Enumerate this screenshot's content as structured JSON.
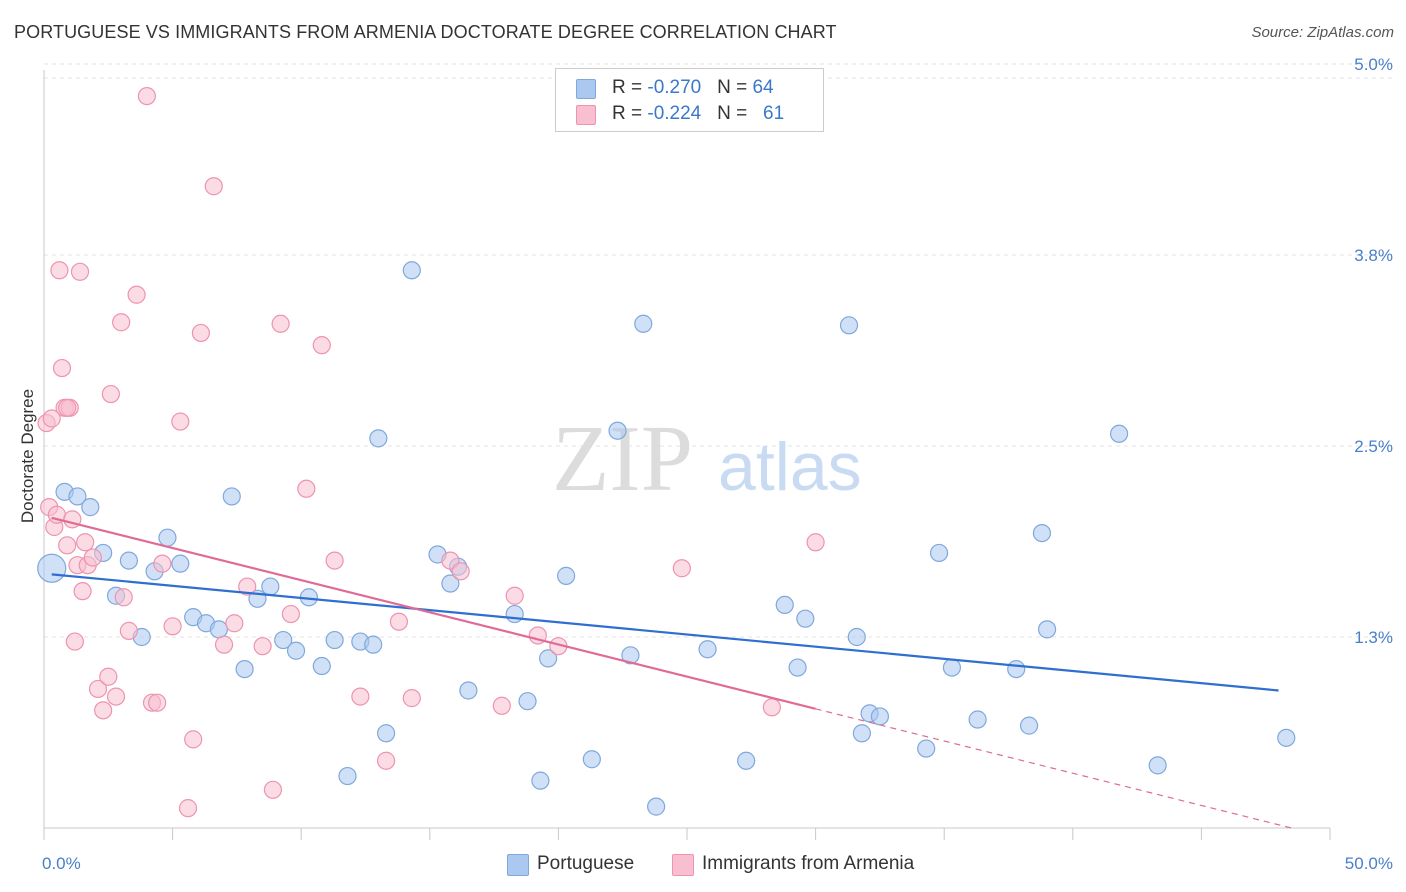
{
  "title": "PORTUGUESE VS IMMIGRANTS FROM ARMENIA DOCTORATE DEGREE CORRELATION CHART",
  "source": "Source: ZipAtlas.com",
  "watermark": {
    "zip": "ZIP",
    "atlas": "atlas"
  },
  "legend": {
    "rows": [
      {
        "r_label": "R = ",
        "r_value": "-0.270",
        "n_label": "N = ",
        "n_value": "64",
        "color": "#aac8f0"
      },
      {
        "r_label": "R = ",
        "r_value": "-0.224",
        "n_label": "N = ",
        "n_value": "61",
        "color": "#f7bfd0"
      }
    ]
  },
  "bottom_legend": [
    {
      "label": "Portuguese",
      "color": "#aac8f0"
    },
    {
      "label": "Immigrants from Armenia",
      "color": "#f7bfd0"
    }
  ],
  "chart_data": {
    "type": "scatter",
    "title": "PORTUGUESE VS IMMIGRANTS FROM ARMENIA DOCTORATE DEGREE CORRELATION CHART",
    "xlabel": "",
    "ylabel": "Doctorate Degree",
    "xlim": [
      0,
      50
    ],
    "ylim": [
      0,
      5.2
    ],
    "x_tick_labels": [
      {
        "value": 0,
        "label": "0.0%"
      },
      {
        "value": 50,
        "label": "50.0%"
      }
    ],
    "y_tick_labels": [
      {
        "value": 1.25,
        "label": "1.3%"
      },
      {
        "value": 2.5,
        "label": "2.5%"
      },
      {
        "value": 3.75,
        "label": "3.8%"
      },
      {
        "value": 5.0,
        "label": "5.0%"
      }
    ],
    "grid": true,
    "series": [
      {
        "name": "Portuguese",
        "color": "#aac8f0",
        "stroke": "#7fa8dc",
        "trend_color": "#2f6fcf",
        "trend": {
          "x0": 0.3,
          "y0": 1.66,
          "x1": 48.0,
          "y1": 0.9
        },
        "points": [
          [
            0.3,
            1.7
          ],
          [
            0.8,
            2.2
          ],
          [
            1.3,
            2.17
          ],
          [
            1.8,
            2.1
          ],
          [
            2.3,
            1.8
          ],
          [
            2.8,
            1.52
          ],
          [
            3.3,
            1.75
          ],
          [
            3.8,
            1.25
          ],
          [
            4.3,
            1.68
          ],
          [
            4.8,
            1.9
          ],
          [
            5.3,
            1.73
          ],
          [
            5.8,
            1.38
          ],
          [
            6.3,
            1.34
          ],
          [
            6.8,
            1.3
          ],
          [
            7.3,
            2.17
          ],
          [
            7.8,
            1.04
          ],
          [
            8.3,
            1.5
          ],
          [
            8.8,
            1.58
          ],
          [
            9.3,
            1.23
          ],
          [
            9.8,
            1.16
          ],
          [
            10.3,
            1.51
          ],
          [
            10.8,
            1.06
          ],
          [
            11.3,
            1.23
          ],
          [
            11.8,
            0.34
          ],
          [
            12.3,
            1.22
          ],
          [
            12.8,
            1.2
          ],
          [
            13.0,
            2.55
          ],
          [
            13.3,
            0.62
          ],
          [
            14.3,
            3.65
          ],
          [
            15.3,
            1.79
          ],
          [
            15.8,
            1.6
          ],
          [
            16.1,
            1.71
          ],
          [
            16.5,
            0.9
          ],
          [
            18.3,
            1.4
          ],
          [
            18.8,
            0.83
          ],
          [
            19.3,
            0.31
          ],
          [
            19.6,
            1.11
          ],
          [
            20.3,
            1.65
          ],
          [
            21.3,
            0.45
          ],
          [
            22.3,
            2.6
          ],
          [
            22.8,
            1.13
          ],
          [
            23.3,
            3.3
          ],
          [
            23.8,
            0.14
          ],
          [
            25.8,
            1.17
          ],
          [
            27.3,
            0.44
          ],
          [
            28.8,
            1.46
          ],
          [
            29.3,
            1.05
          ],
          [
            29.6,
            1.37
          ],
          [
            31.3,
            3.29
          ],
          [
            31.6,
            1.25
          ],
          [
            31.8,
            0.62
          ],
          [
            32.1,
            0.75
          ],
          [
            32.5,
            0.73
          ],
          [
            34.3,
            0.52
          ],
          [
            34.8,
            1.8
          ],
          [
            35.3,
            1.05
          ],
          [
            36.3,
            0.71
          ],
          [
            37.8,
            1.04
          ],
          [
            38.3,
            0.67
          ],
          [
            38.8,
            1.93
          ],
          [
            39.0,
            1.3
          ],
          [
            41.8,
            2.58
          ],
          [
            43.3,
            0.41
          ],
          [
            48.3,
            0.59
          ]
        ]
      },
      {
        "name": "Immigrants from Armenia",
        "color": "#f7bfd0",
        "stroke": "#ee93b0",
        "trend_color": "#e06b96",
        "trend": {
          "x0": 0.3,
          "y0": 2.03,
          "x1": 30.0,
          "y1": 0.78
        },
        "trend_dashed": {
          "x0": 30.0,
          "y0": 0.78,
          "x1": 48.5,
          "y1": 0.0
        },
        "points": [
          [
            0.1,
            2.65
          ],
          [
            0.2,
            2.1
          ],
          [
            0.3,
            2.68
          ],
          [
            0.4,
            1.97
          ],
          [
            0.5,
            2.05
          ],
          [
            0.6,
            3.65
          ],
          [
            0.7,
            3.01
          ],
          [
            0.8,
            2.75
          ],
          [
            0.9,
            1.85
          ],
          [
            1.0,
            2.75
          ],
          [
            1.1,
            2.02
          ],
          [
            1.2,
            1.22
          ],
          [
            1.3,
            1.72
          ],
          [
            1.4,
            3.64
          ],
          [
            1.5,
            1.55
          ],
          [
            1.6,
            1.87
          ],
          [
            1.7,
            1.72
          ],
          [
            1.9,
            1.77
          ],
          [
            2.1,
            0.91
          ],
          [
            2.3,
            0.77
          ],
          [
            2.5,
            0.99
          ],
          [
            2.6,
            2.84
          ],
          [
            2.8,
            0.86
          ],
          [
            3.1,
            1.51
          ],
          [
            3.3,
            1.29
          ],
          [
            3.6,
            3.49
          ],
          [
            4.0,
            4.79
          ],
          [
            4.2,
            0.82
          ],
          [
            4.4,
            0.82
          ],
          [
            4.6,
            1.73
          ],
          [
            5.0,
            1.32
          ],
          [
            5.3,
            2.66
          ],
          [
            5.6,
            0.13
          ],
          [
            5.8,
            0.58
          ],
          [
            6.1,
            3.24
          ],
          [
            6.6,
            4.2
          ],
          [
            7.0,
            1.2
          ],
          [
            7.4,
            1.34
          ],
          [
            7.9,
            1.58
          ],
          [
            8.5,
            1.19
          ],
          [
            8.9,
            0.25
          ],
          [
            9.2,
            3.3
          ],
          [
            9.6,
            1.4
          ],
          [
            10.2,
            2.22
          ],
          [
            10.8,
            3.16
          ],
          [
            11.3,
            1.75
          ],
          [
            12.3,
            0.86
          ],
          [
            13.3,
            0.44
          ],
          [
            13.8,
            1.35
          ],
          [
            14.3,
            0.85
          ],
          [
            15.8,
            1.75
          ],
          [
            16.2,
            1.68
          ],
          [
            17.8,
            0.8
          ],
          [
            18.3,
            1.52
          ],
          [
            19.2,
            1.26
          ],
          [
            20.0,
            1.19
          ],
          [
            24.8,
            1.7
          ],
          [
            28.3,
            0.79
          ],
          [
            30.0,
            1.87
          ],
          [
            3.0,
            3.31
          ],
          [
            0.9,
            2.75
          ]
        ]
      }
    ]
  }
}
